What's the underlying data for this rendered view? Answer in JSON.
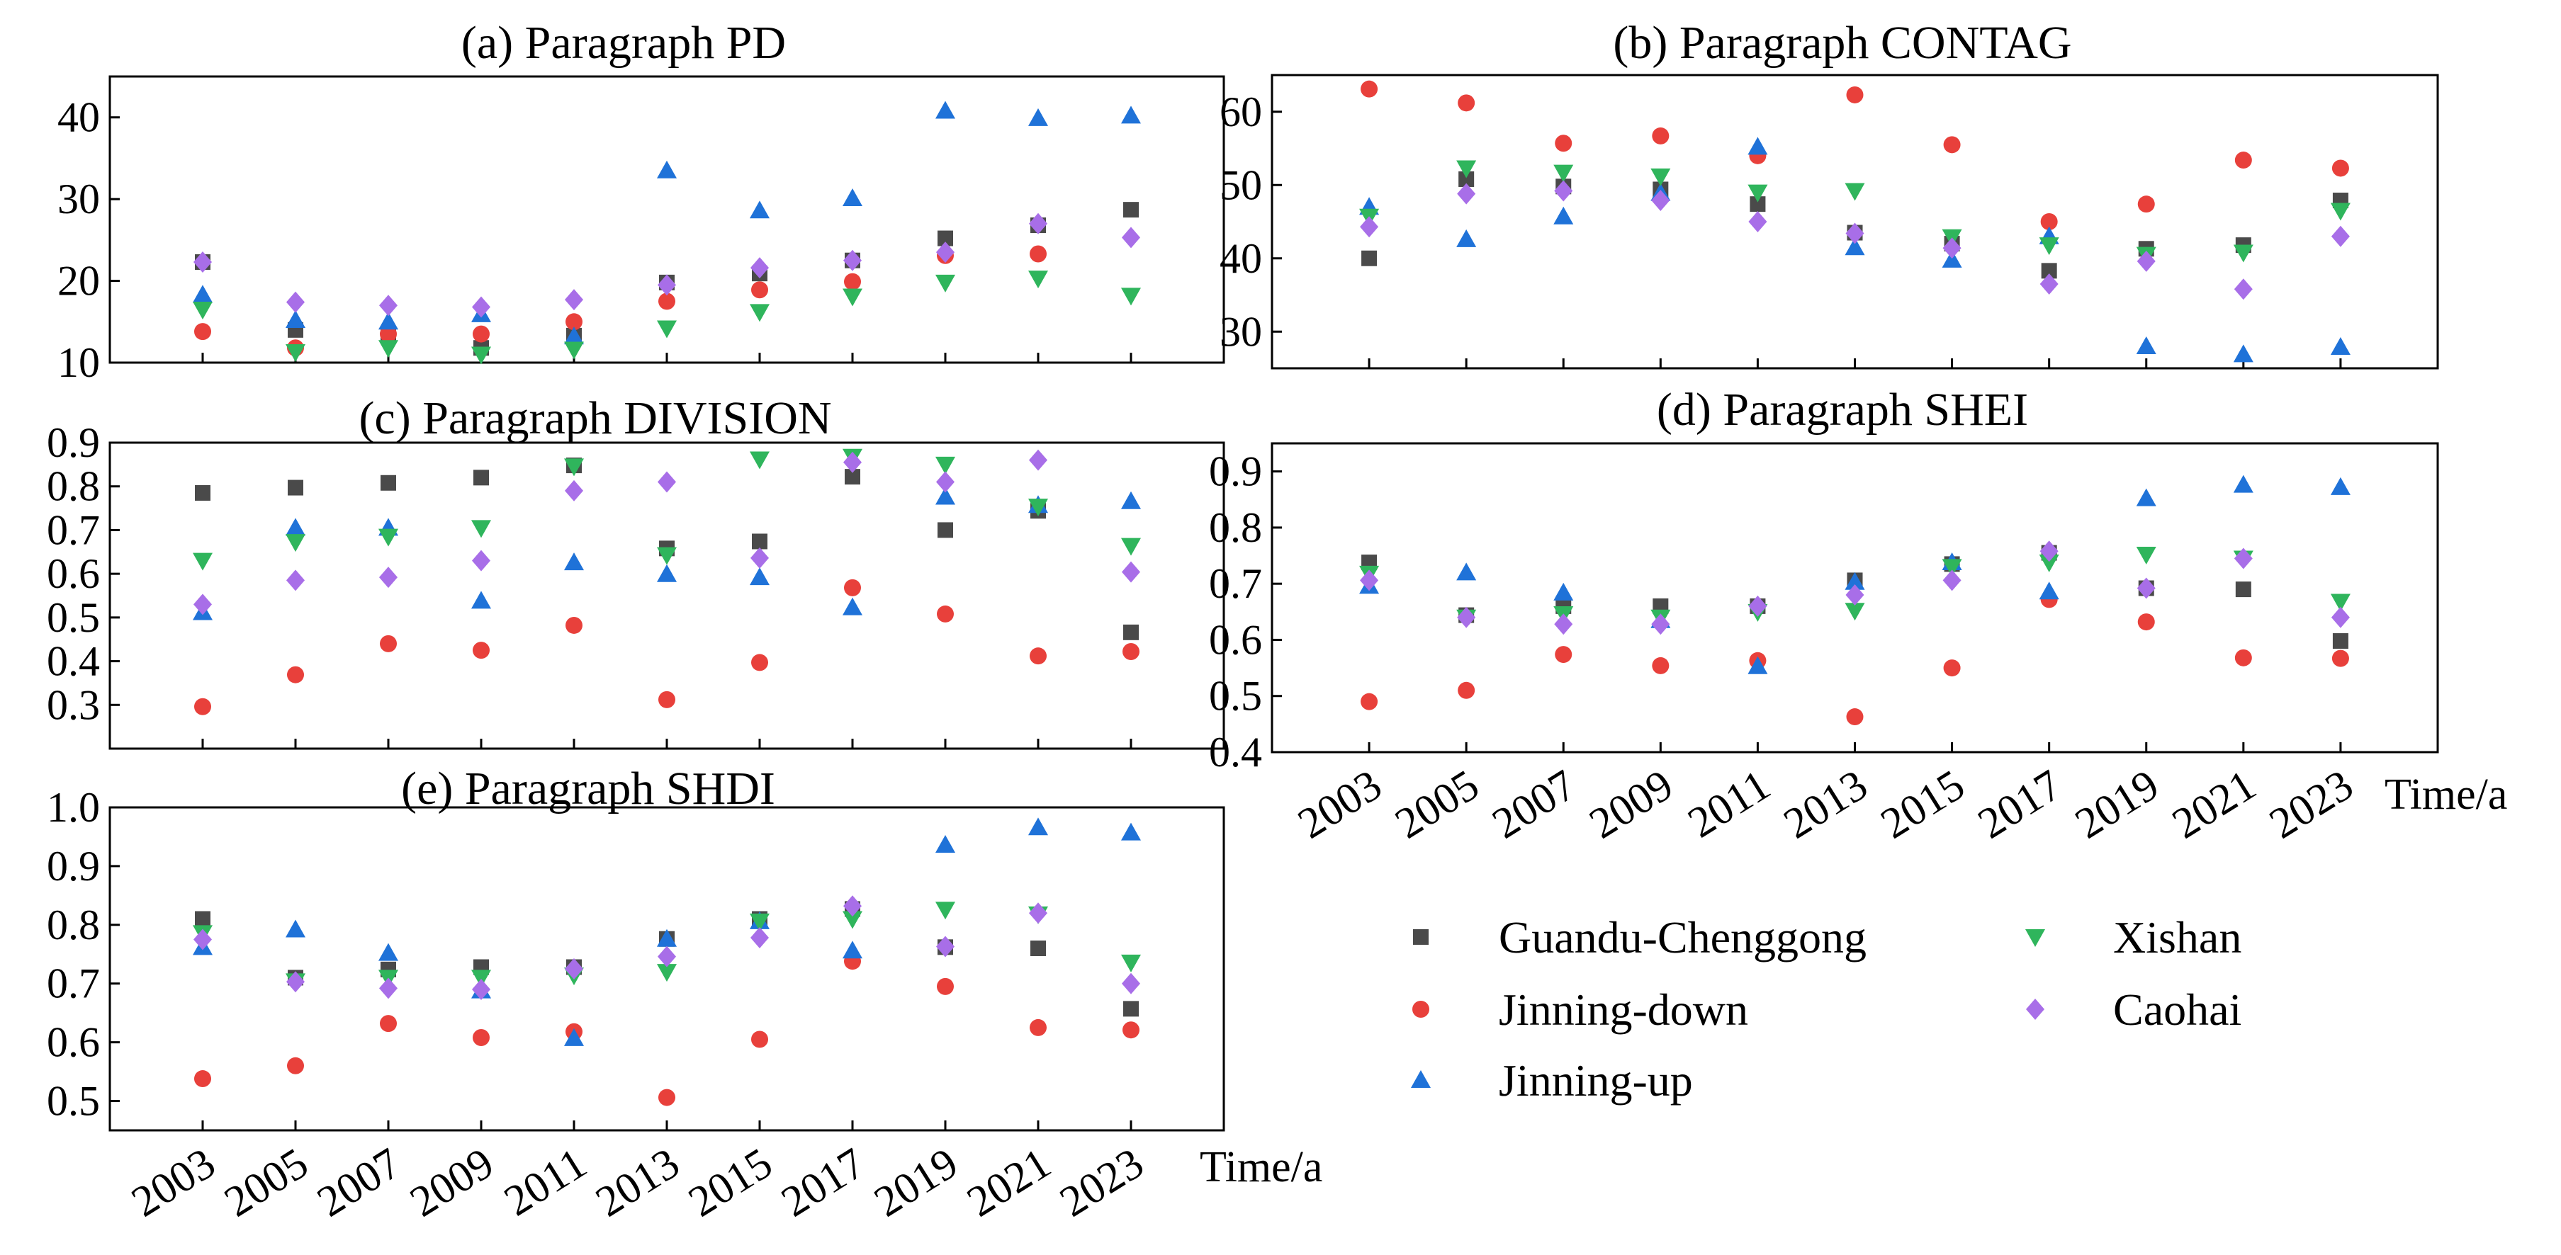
{
  "colors": {
    "Guandu-Chenggong": "#4a4a4a",
    "Jinning-down": "#e8403b",
    "Jinning-up": "#1f72d8",
    "Xishan": "#2fb55c",
    "Caohai": "#a86ee8"
  },
  "markers": {
    "Guandu-Chenggong": "square",
    "Jinning-down": "circle",
    "Jinning-up": "triangle-up",
    "Xishan": "triangle-down",
    "Caohai": "diamond"
  },
  "legend": {
    "items": [
      "Guandu-Chenggong",
      "Jinning-down",
      "Jinning-up",
      "Xishan",
      "Caohai"
    ]
  },
  "chart_data": [
    {
      "id": "a",
      "type": "scatter",
      "title": "(a) Paragraph PD",
      "xlabel": "",
      "ylim": [
        10,
        45
      ],
      "yticks": [
        10,
        20,
        30,
        40
      ],
      "ytick_labels": [
        "10",
        "20",
        "30",
        "40"
      ],
      "x": [
        2003,
        2005,
        2007,
        2009,
        2011,
        2013,
        2015,
        2017,
        2019,
        2021,
        2023
      ],
      "xtick_labels": [],
      "series": [
        {
          "name": "Guandu-Chenggong",
          "values": [
            22.3,
            14.0,
            13.5,
            11.8,
            13.3,
            19.8,
            20.9,
            22.5,
            25.2,
            26.8,
            28.7
          ]
        },
        {
          "name": "Jinning-down",
          "values": [
            13.8,
            11.8,
            13.5,
            13.5,
            15.0,
            17.5,
            18.9,
            19.9,
            23.1,
            23.3,
            null
          ]
        },
        {
          "name": "Jinning-up",
          "values": [
            18.3,
            15.2,
            15.0,
            15.9,
            13.2,
            33.5,
            28.6,
            30.1,
            40.8,
            39.9,
            40.2
          ]
        },
        {
          "name": "Xishan",
          "values": [
            16.5,
            11.3,
            11.8,
            11.0,
            11.6,
            14.2,
            16.2,
            18.1,
            19.8,
            20.3,
            18.2
          ]
        },
        {
          "name": "Caohai",
          "values": [
            22.3,
            17.4,
            17.0,
            16.8,
            17.7,
            19.5,
            21.6,
            22.5,
            23.5,
            27.0,
            25.3
          ]
        }
      ]
    },
    {
      "id": "b",
      "type": "scatter",
      "title": "(b) Paragraph CONTAG",
      "xlabel": "",
      "ylim": [
        25,
        65
      ],
      "yticks": [
        30,
        40,
        50,
        60
      ],
      "ytick_labels": [
        "30",
        "40",
        "50",
        "60"
      ],
      "x": [
        2003,
        2005,
        2007,
        2009,
        2011,
        2013,
        2015,
        2017,
        2019,
        2021,
        2023
      ],
      "xtick_labels": [],
      "series": [
        {
          "name": "Guandu-Chenggong",
          "values": [
            40.0,
            50.8,
            49.8,
            49.4,
            47.4,
            43.5,
            42.0,
            38.3,
            41.3,
            41.8,
            47.9
          ]
        },
        {
          "name": "Jinning-down",
          "values": [
            63.1,
            61.2,
            55.7,
            56.7,
            54.0,
            62.3,
            55.5,
            45.0,
            47.4,
            53.4,
            52.3
          ]
        },
        {
          "name": "Jinning-up",
          "values": [
            47.0,
            42.6,
            45.7,
            48.9,
            55.2,
            41.5,
            39.8,
            43.0,
            28.0,
            26.9,
            27.9
          ]
        },
        {
          "name": "Xishan",
          "values": [
            45.7,
            52.3,
            51.7,
            51.2,
            49.0,
            49.2,
            42.9,
            41.8,
            40.5,
            40.8,
            46.5
          ]
        },
        {
          "name": "Caohai",
          "values": [
            44.3,
            48.8,
            49.2,
            47.9,
            45.0,
            43.4,
            41.4,
            36.5,
            39.6,
            35.8,
            43.0
          ]
        }
      ]
    },
    {
      "id": "c",
      "type": "scatter",
      "title": "(c) Paragraph DIVISION",
      "xlabel": "",
      "ylim": [
        0.2,
        0.9
      ],
      "yticks": [
        0.3,
        0.4,
        0.5,
        0.6,
        0.7,
        0.8,
        0.9
      ],
      "ytick_labels": [
        "0.3",
        "0.4",
        "0.5",
        "0.6",
        "0.7",
        "0.8",
        "0.9"
      ],
      "x": [
        2003,
        2005,
        2007,
        2009,
        2011,
        2013,
        2015,
        2017,
        2019,
        2021,
        2023
      ],
      "xtick_labels": [],
      "series": [
        {
          "name": "Guandu-Chenggong",
          "values": [
            0.785,
            0.797,
            0.808,
            0.82,
            0.848,
            0.658,
            0.674,
            0.822,
            0.7,
            0.744,
            0.466
          ]
        },
        {
          "name": "Jinning-down",
          "values": [
            0.296,
            0.369,
            0.44,
            0.425,
            0.482,
            0.312,
            0.397,
            0.568,
            0.508,
            0.412,
            0.422
          ]
        },
        {
          "name": "Jinning-up",
          "values": [
            0.512,
            0.705,
            0.705,
            0.538,
            0.626,
            0.599,
            0.592,
            0.523,
            0.776,
            0.757,
            0.766
          ]
        },
        {
          "name": "Xishan",
          "values": [
            0.63,
            0.673,
            0.685,
            0.705,
            0.846,
            0.643,
            0.862,
            0.868,
            0.85,
            0.754,
            0.664
          ]
        },
        {
          "name": "Caohai",
          "values": [
            0.53,
            0.585,
            0.592,
            0.63,
            0.79,
            0.81,
            0.636,
            0.855,
            0.81,
            0.86,
            0.604
          ]
        }
      ]
    },
    {
      "id": "d",
      "type": "scatter",
      "title": "(d) Paragraph SHEI",
      "xlabel": "Time/a",
      "ylim": [
        0.4,
        0.95
      ],
      "yticks": [
        0.4,
        0.5,
        0.6,
        0.7,
        0.8,
        0.9
      ],
      "ytick_labels": [
        "0.4",
        "0.5",
        "0.6",
        "0.7",
        "0.8",
        "0.9"
      ],
      "x": [
        2003,
        2005,
        2007,
        2009,
        2011,
        2013,
        2015,
        2017,
        2019,
        2021,
        2023
      ],
      "xtick_labels": [
        "2003",
        "2005",
        "2007",
        "2009",
        "2011",
        "2013",
        "2015",
        "2017",
        "2019",
        "2021",
        "2023"
      ],
      "series": [
        {
          "name": "Guandu-Chenggong",
          "values": [
            0.738,
            0.644,
            0.66,
            0.66,
            0.66,
            0.706,
            0.735,
            0.755,
            0.692,
            0.69,
            0.598
          ]
        },
        {
          "name": "Jinning-down",
          "values": [
            0.49,
            0.51,
            0.574,
            0.554,
            0.563,
            0.463,
            0.55,
            0.672,
            0.632,
            0.568,
            0.567
          ]
        },
        {
          "name": "Jinning-up",
          "values": [
            0.696,
            0.72,
            0.684,
            0.635,
            0.553,
            0.703,
            0.738,
            0.686,
            0.852,
            0.876,
            0.872
          ]
        },
        {
          "name": "Xishan",
          "values": [
            0.718,
            0.64,
            0.646,
            0.64,
            0.65,
            0.652,
            0.73,
            0.738,
            0.752,
            0.745,
            0.668
          ]
        },
        {
          "name": "Caohai",
          "values": [
            0.706,
            0.64,
            0.628,
            0.628,
            0.66,
            0.68,
            0.706,
            0.758,
            0.692,
            0.745,
            0.64
          ]
        }
      ]
    },
    {
      "id": "e",
      "type": "scatter",
      "title": "(e) Paragraph SHDI",
      "xlabel": "Time/a",
      "ylim": [
        0.45,
        1.0
      ],
      "yticks": [
        0.5,
        0.6,
        0.7,
        0.8,
        0.9,
        1.0
      ],
      "ytick_labels": [
        "0.5",
        "0.6",
        "0.7",
        "0.8",
        "0.9",
        "1.0"
      ],
      "x": [
        2003,
        2005,
        2007,
        2009,
        2011,
        2013,
        2015,
        2017,
        2019,
        2021,
        2023
      ],
      "xtick_labels": [
        "2003",
        "2005",
        "2007",
        "2009",
        "2011",
        "2013",
        "2015",
        "2017",
        "2019",
        "2021",
        "2023"
      ],
      "series": [
        {
          "name": "Guandu-Chenggong",
          "values": [
            0.81,
            0.71,
            0.724,
            0.728,
            0.728,
            0.776,
            0.81,
            0.827,
            0.762,
            0.76,
            0.657
          ]
        },
        {
          "name": "Jinning-down",
          "values": [
            0.538,
            0.56,
            0.632,
            0.608,
            0.618,
            0.506,
            0.605,
            0.738,
            0.695,
            0.625,
            0.621
          ]
        },
        {
          "name": "Jinning-up",
          "values": [
            0.762,
            0.792,
            0.752,
            0.688,
            0.607,
            0.776,
            0.806,
            0.756,
            0.936,
            0.966,
            0.957
          ]
        },
        {
          "name": "Xishan",
          "values": [
            0.786,
            0.704,
            0.71,
            0.71,
            0.714,
            0.72,
            0.806,
            0.81,
            0.826,
            0.818,
            0.736
          ]
        },
        {
          "name": "Caohai",
          "values": [
            0.775,
            0.703,
            0.692,
            0.69,
            0.725,
            0.746,
            0.778,
            0.832,
            0.763,
            0.82,
            0.7
          ]
        }
      ]
    }
  ]
}
